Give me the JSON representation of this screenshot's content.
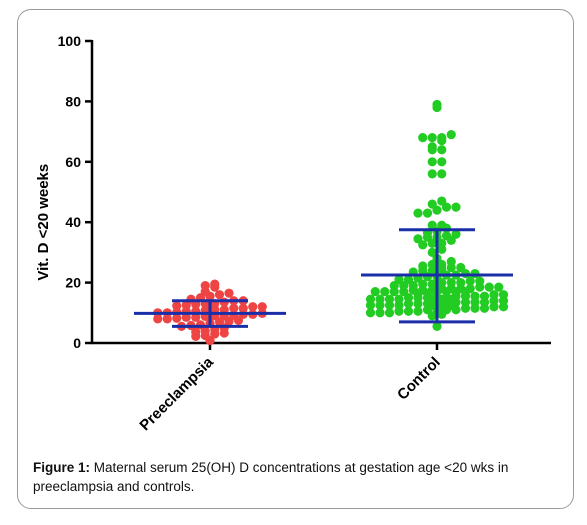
{
  "chart_data": {
    "type": "scatter",
    "subtype": "dot-plot",
    "ylabel": "Vit. D <20 weeks",
    "xlabel": "",
    "ylim": [
      0,
      100
    ],
    "yticks": [
      0,
      20,
      40,
      60,
      80,
      100
    ],
    "categories": [
      "Preeclampsia",
      "Control"
    ],
    "grid": false,
    "legend": "none",
    "colors": {
      "Preeclampsia": "#ee4444",
      "Control": "#22cc22",
      "summary": "#1a2ea8"
    },
    "groups": [
      {
        "category": "Preeclampsia",
        "summary": {
          "mean": 9.8,
          "lower": 5.5,
          "upper": 14
        },
        "values": [
          0.8,
          2.2,
          2.5,
          3,
          3.3,
          3.6,
          4,
          4.5,
          5,
          5.5,
          5.8,
          6,
          6.5,
          7,
          7.2,
          7.5,
          8,
          8,
          8.2,
          8.5,
          8.5,
          8.8,
          9,
          9,
          9.2,
          9.5,
          9.5,
          9.8,
          10,
          10,
          10.2,
          10.5,
          10.5,
          10.8,
          11,
          11,
          11.5,
          11.5,
          12,
          12,
          12.3,
          12.5,
          12.8,
          13,
          13,
          13.5,
          14,
          14,
          14.5,
          15,
          15.5,
          16,
          16.5,
          17,
          18.5,
          19,
          19.5
        ]
      },
      {
        "category": "Control",
        "summary": {
          "mean": 22.5,
          "lower": 7,
          "upper": 37.5
        },
        "values": [
          5.5,
          9,
          9.5,
          10,
          10,
          10,
          10.5,
          10.5,
          10.5,
          11,
          11,
          11,
          11,
          11.5,
          11.5,
          11.5,
          12,
          12,
          12,
          12,
          12,
          12.5,
          12.5,
          12.5,
          12.5,
          13,
          13,
          13,
          13,
          13,
          13.5,
          13.5,
          13.5,
          13.5,
          14,
          14,
          14,
          14,
          14,
          14.5,
          14.5,
          14.5,
          14.5,
          15,
          15,
          15,
          15,
          15,
          15.5,
          15.5,
          15.5,
          15.5,
          16,
          16,
          16,
          16,
          16.5,
          16.5,
          16.5,
          16.5,
          17,
          17,
          17,
          17,
          17.5,
          17.5,
          17.5,
          18,
          18,
          18,
          18,
          18.5,
          18.5,
          18.5,
          19,
          19,
          19,
          19.5,
          19.5,
          20,
          20,
          20,
          20.5,
          20.5,
          21,
          21,
          21.5,
          22,
          22,
          22.5,
          22.5,
          23,
          23,
          23.5,
          24,
          24,
          24.5,
          25,
          25,
          25.5,
          26,
          26,
          27,
          28,
          30,
          31,
          32.5,
          33,
          33,
          34,
          34.5,
          35,
          35,
          35.5,
          36,
          36.5,
          37,
          38,
          39,
          39,
          43,
          43,
          44,
          45,
          45,
          46,
          47,
          56,
          56,
          60,
          60,
          64,
          64,
          65,
          67,
          68,
          68,
          68,
          69,
          78,
          79
        ]
      }
    ]
  },
  "caption": {
    "label": "Figure 1:",
    "text": " Maternal serum 25(OH) D concentrations at gestation age <20 wks in preeclampsia and controls."
  }
}
